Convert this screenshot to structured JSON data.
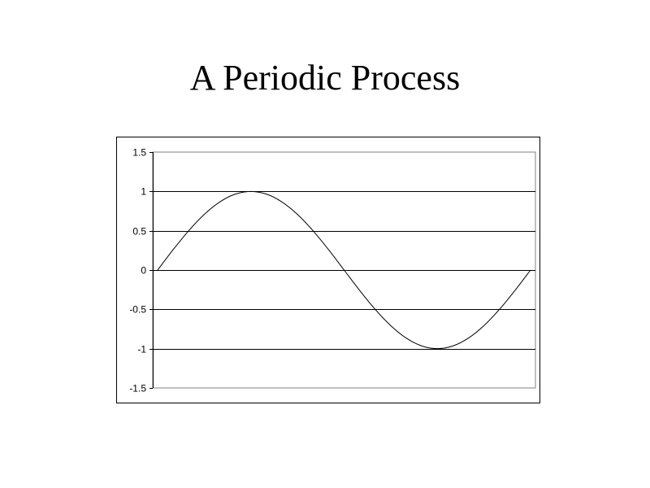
{
  "slide": {
    "title": "A Periodic Process"
  },
  "chart_data": {
    "type": "line",
    "title": "",
    "xlabel": "",
    "ylabel": "",
    "ylim": [
      -1.5,
      1.5
    ],
    "yticks": [
      1.5,
      1,
      0.5,
      0,
      -0.5,
      -1,
      -1.5
    ],
    "ytick_labels": [
      "1.5",
      "1",
      "0.5",
      "0",
      "-0.5",
      "-1",
      "-1.5"
    ],
    "grid": true,
    "legend": "none",
    "series": [
      {
        "x": [
          0,
          15,
          30,
          45,
          60,
          75,
          90,
          105,
          120,
          135,
          150,
          165,
          180,
          195,
          210,
          225,
          240,
          255,
          270,
          285,
          300,
          315,
          330,
          345,
          360
        ],
        "y": [
          0,
          0.259,
          0.5,
          0.707,
          0.866,
          0.966,
          1,
          0.966,
          0.866,
          0.707,
          0.5,
          0.259,
          0,
          -0.259,
          -0.5,
          -0.707,
          -0.866,
          -0.966,
          -1,
          -0.966,
          -0.866,
          -0.707,
          -0.5,
          -0.259,
          0
        ],
        "color": "#000000"
      }
    ],
    "xlim": [
      0,
      360
    ],
    "plot_border_color": "#808080",
    "gridline_color": "#000000"
  }
}
